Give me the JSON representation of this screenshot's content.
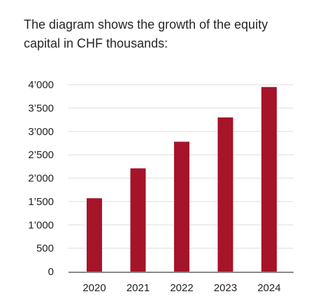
{
  "title": "The diagram shows the growth of the equity capital in CHF thousands:",
  "chart_data": {
    "type": "bar",
    "title": "The diagram shows the growth of the equity capital in CHF thousands:",
    "categories": [
      "2020",
      "2021",
      "2022",
      "2023",
      "2024"
    ],
    "values": [
      1570,
      2210,
      2780,
      3300,
      3950
    ],
    "y_tick_labels": [
      "0",
      "500",
      "1’000",
      "1’500",
      "2’000",
      "2’500",
      "3’000",
      "3’500",
      "4’000"
    ],
    "y_ticks": [
      0,
      500,
      1000,
      1500,
      2000,
      2500,
      3000,
      3500,
      4000
    ],
    "ylim": [
      0,
      4000
    ],
    "xlabel": "",
    "ylabel": "",
    "grid": true,
    "legend": "none",
    "colors": {
      "bar": "#a6142a",
      "grid": "#dedede",
      "axis": "#888888"
    }
  }
}
